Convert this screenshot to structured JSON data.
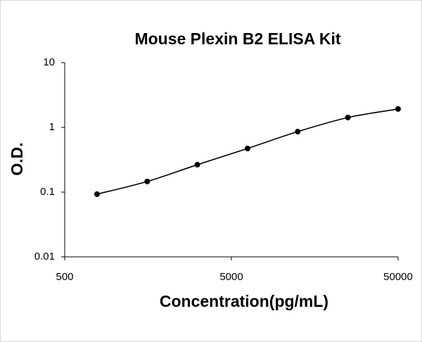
{
  "chart_data": {
    "type": "scatter",
    "title": "Mouse Plexin B2 ELISA Kit",
    "x_label": "Concentration(pg/mL)",
    "y_label": "O.D.",
    "x": [
      781.25,
      1562.5,
      3125,
      6250,
      12500,
      25000,
      50000
    ],
    "values": [
      0.093,
      0.146,
      0.265,
      0.472,
      0.86,
      1.42,
      1.92
    ],
    "color": "#000000",
    "line": true,
    "log_x": true,
    "log_y": true,
    "xlim": [
      500,
      50000
    ],
    "xticks": [
      500,
      5000,
      50000
    ],
    "ylim": [
      0.01,
      10
    ],
    "yticks": [
      0.01,
      0.1,
      1,
      10
    ]
  }
}
